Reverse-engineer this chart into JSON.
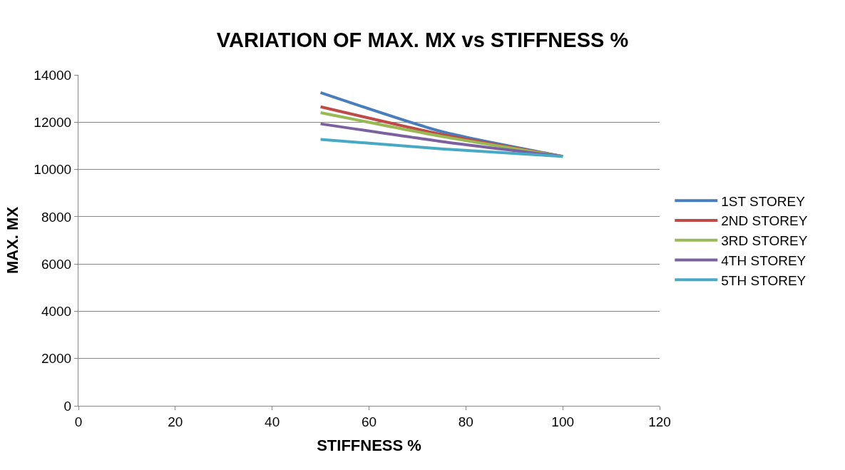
{
  "chart_data": {
    "type": "line",
    "title": "VARIATION OF MAX. MX vs STIFFNESS %",
    "xlabel": "STIFFNESS %",
    "ylabel": "MAX. MX",
    "x": [
      50,
      75,
      100
    ],
    "series": [
      {
        "name": "1ST STOREY",
        "color": "#4a7ebb",
        "values": [
          13250,
          11600,
          10550
        ]
      },
      {
        "name": "2ND STOREY",
        "color": "#be4b48",
        "values": [
          12650,
          11480,
          10550
        ]
      },
      {
        "name": "3RD STOREY",
        "color": "#98b954",
        "values": [
          12400,
          11400,
          10550
        ]
      },
      {
        "name": "4TH STOREY",
        "color": "#7d60a0",
        "values": [
          11930,
          11180,
          10550
        ]
      },
      {
        "name": "5TH STOREY",
        "color": "#46aac5",
        "values": [
          11270,
          10870,
          10550
        ]
      }
    ],
    "xlim": [
      0,
      120
    ],
    "xticks": [
      0,
      20,
      40,
      60,
      80,
      100,
      120
    ],
    "ylim": [
      0,
      14000
    ],
    "yticks": [
      0,
      2000,
      4000,
      6000,
      8000,
      10000,
      12000,
      14000
    ],
    "grid": "y",
    "legend": "right",
    "marker": "none",
    "line_style": "solid"
  }
}
